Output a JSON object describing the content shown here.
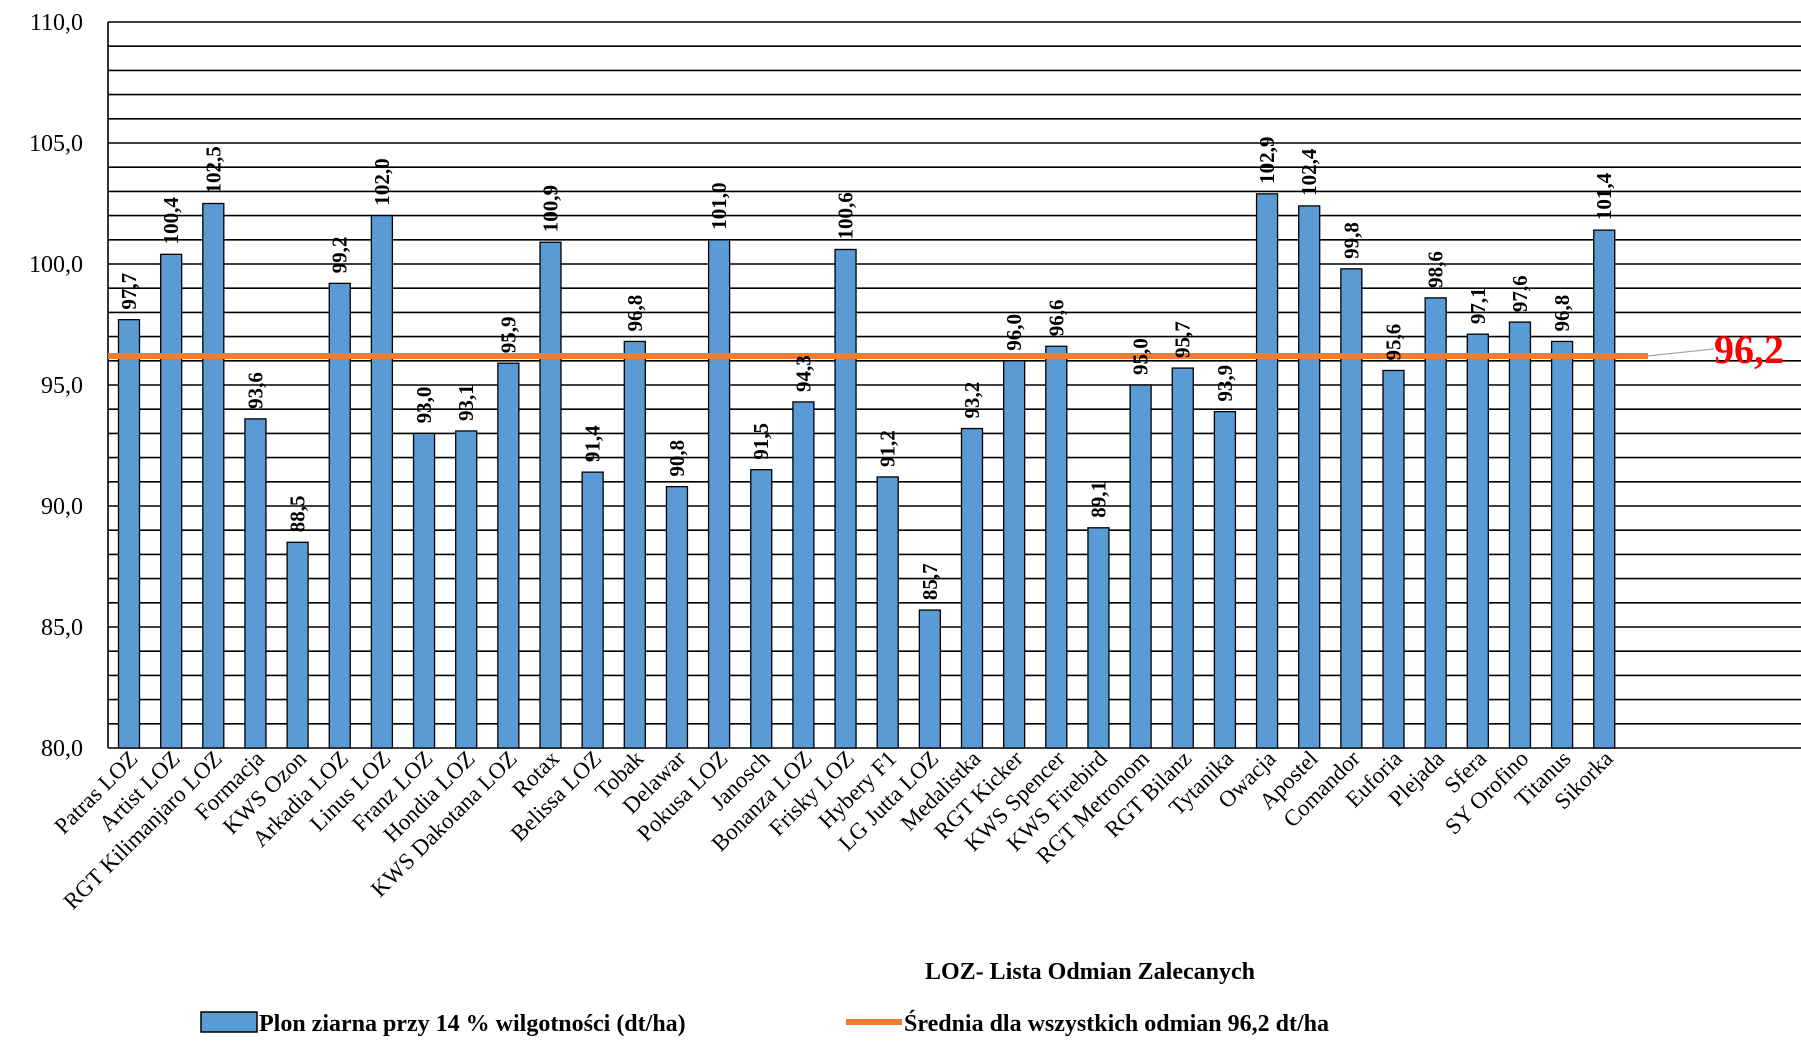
{
  "chart_data": {
    "type": "bar",
    "categories": [
      "Patras  LOZ",
      "Artist  LOZ",
      "RGT Kilimanjaro  LOZ",
      "Formacja",
      "KWS Ozon",
      "Arkadia  LOZ",
      "Linus  LOZ",
      "Franz  LOZ",
      "Hondia  LOZ",
      "KWS Dakotana  LOZ",
      "Rotax",
      "Belissa  LOZ",
      "Tobak",
      "Delawar",
      "Pokusa  LOZ",
      "Janosch",
      "Bonanza  LOZ",
      "Frisky  LOZ",
      "Hybery F1",
      "LG Jutta  LOZ",
      "Medalistka",
      "RGT Kicker",
      "KWS Spencer",
      "KWS Firebird",
      "RGT Metronom",
      "RGT Bilanz",
      "Tytanika",
      "Owacja",
      "Apostel",
      "Comandor",
      "Euforia",
      "Plejada",
      "Sfera",
      "SY Orofino",
      "Titanus",
      "Sikorka"
    ],
    "series": [
      {
        "name": "Plon ziarna przy 14 % wilgotności (dt/ha)",
        "values": [
          97.7,
          100.4,
          102.5,
          93.6,
          88.5,
          99.2,
          102.0,
          93.0,
          93.1,
          95.9,
          100.9,
          91.4,
          96.8,
          90.8,
          101.0,
          91.5,
          94.3,
          100.6,
          91.2,
          85.7,
          93.2,
          96.0,
          96.6,
          89.1,
          95.0,
          95.7,
          93.9,
          102.9,
          102.4,
          99.8,
          95.6,
          98.6,
          97.1,
          97.6,
          96.8,
          101.4
        ],
        "labels": [
          "97,7",
          "100,4",
          "102,5",
          "93,6",
          "88,5",
          "99,2",
          "102,0",
          "93,0",
          "93,1",
          "95,9",
          "100,9",
          "91,4",
          "96,8",
          "90,8",
          "101,0",
          "91,5",
          "94,3",
          "100,6",
          "91,2",
          "85,7",
          "93,2",
          "96,0",
          "96,6",
          "89,1",
          "95,0",
          "95,7",
          "93,9",
          "102,9",
          "102,4",
          "99,8",
          "95,6",
          "98,6",
          "97,1",
          "97,6",
          "96,8",
          "101,4"
        ],
        "color": "#5B9BD5"
      },
      {
        "name": "Średnia dla wszystkich odmian 96,2 dt/ha",
        "value": 96.2,
        "label": "96,2",
        "color": "#ED7D31",
        "label_color": "#FF0000"
      }
    ],
    "ylim": [
      80,
      110
    ],
    "yticks": [
      "80,0",
      "85,0",
      "90,0",
      "95,0",
      "100,0",
      "105,0",
      "110,0"
    ],
    "ytick_values": [
      80,
      85,
      90,
      95,
      100,
      105,
      110
    ],
    "minor_grid_step": 1,
    "note": "LOZ- Lista Odmian Zalecanych",
    "legend_position": "bottom",
    "grid": true
  }
}
